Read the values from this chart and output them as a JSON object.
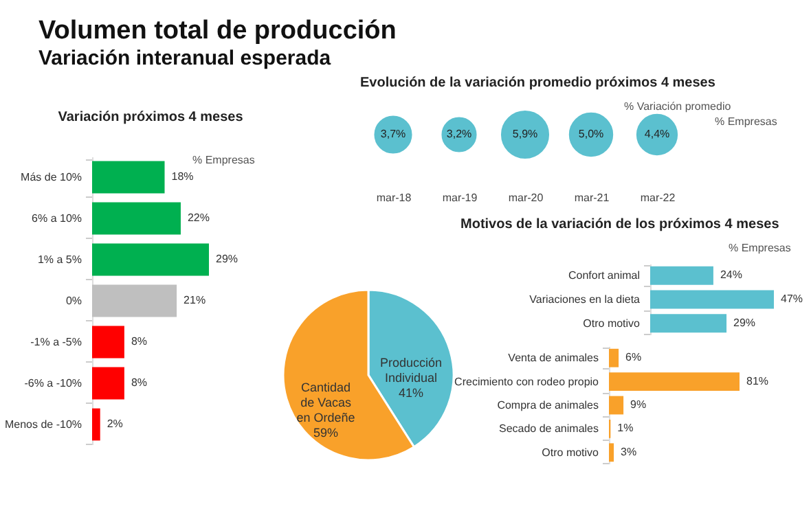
{
  "chart_data": [
    {
      "type": "other",
      "title": "Volumen total de producción",
      "subtitle": "Variación interanual esperada"
    },
    {
      "type": "bar",
      "orientation": "horizontal",
      "title": "Variación próximos 4 meses",
      "annotations": [
        "% Empresas"
      ],
      "categories": [
        "Más de 10%",
        "6% a 10%",
        "1% a 5%",
        "0%",
        "-1% a -5%",
        "-6% a -10%",
        "Menos de -10%"
      ],
      "values": [
        18,
        22,
        29,
        21,
        8,
        8,
        2
      ],
      "colors": [
        "#00b050",
        "#00b050",
        "#00b050",
        "#bfbfbf",
        "#ff0000",
        "#ff0000",
        "#ff0000"
      ],
      "value_labels": [
        "18%",
        "22%",
        "29%",
        "21%",
        "8%",
        "8%",
        "2%"
      ]
    },
    {
      "type": "other",
      "title": "Evolución de la variación promedio próximos 4 meses",
      "annotations": [
        "% Variación promedio",
        "% Empresas"
      ],
      "categories": [
        "mar-18",
        "mar-19",
        "mar-20",
        "mar-21",
        "mar-22"
      ],
      "values": [
        3.7,
        3.2,
        5.9,
        5.0,
        4.4
      ],
      "value_labels": [
        "3,7%",
        "3,2%",
        "5,9%",
        "5,0%",
        "4,4%"
      ],
      "color": "#5bc0cf"
    },
    {
      "type": "pie",
      "categories": [
        "Producción Individual",
        "Cantidad de Vacas en Ordeñe"
      ],
      "values": [
        41,
        59
      ],
      "colors": [
        "#5bc0cf",
        "#f9a12a"
      ],
      "value_labels": [
        "41%",
        "59%"
      ]
    },
    {
      "type": "bar",
      "orientation": "horizontal",
      "title": "Motivos de la variación de los próximos 4 meses",
      "annotations": [
        "% Empresas"
      ],
      "categories": [
        "Confort animal",
        "Variaciones en la dieta",
        "Otro motivo"
      ],
      "values": [
        24,
        47,
        29
      ],
      "color": "#5bc0cf",
      "value_labels": [
        "24%",
        "47%",
        "29%"
      ]
    },
    {
      "type": "bar",
      "orientation": "horizontal",
      "categories": [
        "Venta de animales",
        "Crecimiento con rodeo propio",
        "Compra de animales",
        "Secado de animales",
        "Otro motivo"
      ],
      "values": [
        6,
        81,
        9,
        1,
        3
      ],
      "color": "#f9a12a",
      "value_labels": [
        "6%",
        "81%",
        "9%",
        "1%",
        "3%"
      ]
    }
  ]
}
